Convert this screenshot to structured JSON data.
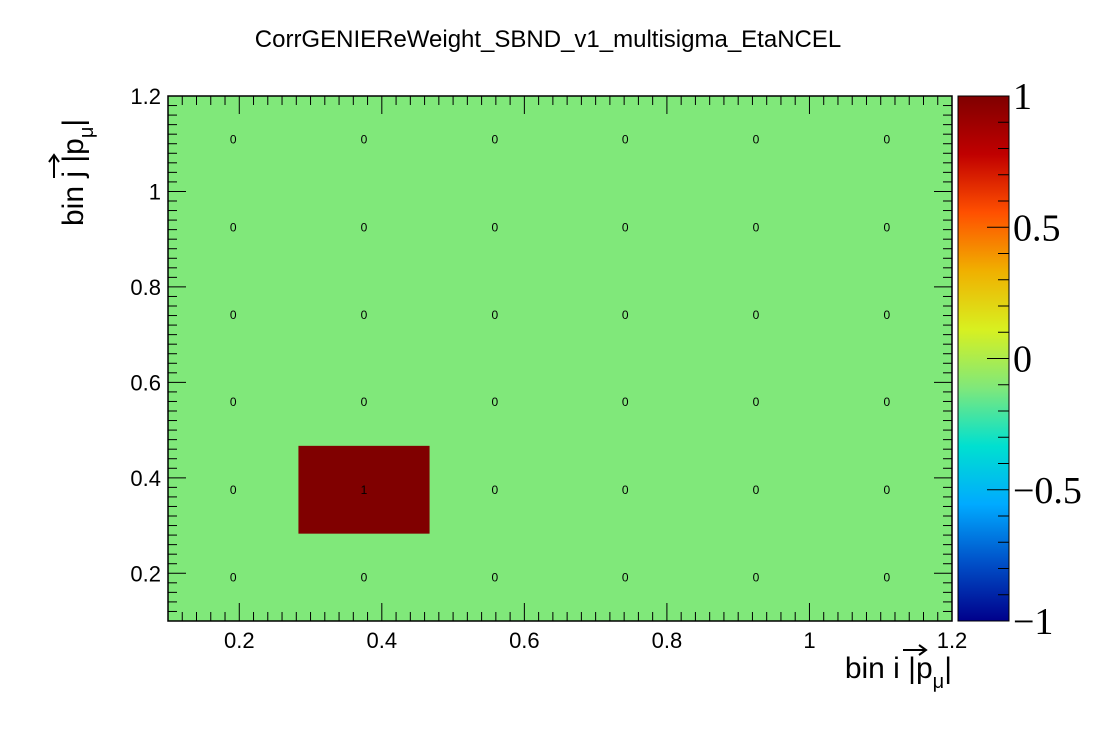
{
  "chart_data": {
    "type": "heatmap",
    "title": "CorrGENIEReWeight_SBND_v1_multisigma_EtaNCEL",
    "xlabel": "bin i |p⃗μ|",
    "ylabel": "bin j |p⃗μ|",
    "xlabel_parts": {
      "text": "bin i |",
      "vec": "p",
      "sub": "μ",
      "close": "|"
    },
    "ylabel_parts": {
      "text": "bin j |",
      "vec": "p",
      "sub": "μ",
      "close": "|"
    },
    "xlim": [
      0.1,
      1.2
    ],
    "ylim": [
      0.1,
      1.2
    ],
    "x_ticks": [
      "0.2",
      "0.4",
      "0.6",
      "0.8",
      "1",
      "1.2"
    ],
    "y_ticks": [
      "0.2",
      "0.4",
      "0.6",
      "0.8",
      "1",
      "1.2"
    ],
    "x_edges": [
      0.1,
      0.283,
      0.467,
      0.65,
      0.833,
      1.017,
      1.2
    ],
    "y_edges": [
      0.1,
      0.283,
      0.467,
      0.65,
      0.833,
      1.017,
      1.2
    ],
    "values": [
      [
        0,
        0,
        0,
        0,
        0,
        0
      ],
      [
        0,
        1,
        0,
        0,
        0,
        0
      ],
      [
        0,
        0,
        0,
        0,
        0,
        0
      ],
      [
        0,
        0,
        0,
        0,
        0,
        0
      ],
      [
        0,
        0,
        0,
        0,
        0,
        0
      ],
      [
        0,
        0,
        0,
        0,
        0,
        0
      ]
    ],
    "values_note_rows": "row index = y bin from bottom, column index = x bin from left",
    "drawn_cells": [
      [
        1,
        1
      ]
    ],
    "zlim": [
      -1,
      1
    ],
    "colorbar_ticks": [
      "1",
      "0.5",
      "0",
      "−0.5",
      "−1"
    ],
    "colorbar_tick_values": [
      1,
      0.5,
      0,
      -0.5,
      -1
    ],
    "colorscale": [
      "#00008b",
      "#0050c8",
      "#00aaff",
      "#00e0d0",
      "#80e87a",
      "#d8f020",
      "#f0b000",
      "#ff5000",
      "#c00000",
      "#800000"
    ],
    "background_color": "#80e87a",
    "grid": false,
    "legend": "none"
  }
}
